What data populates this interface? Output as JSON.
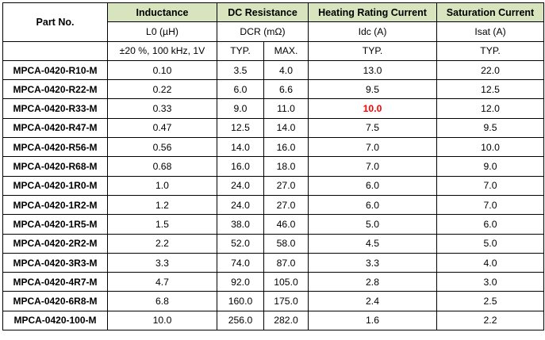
{
  "table": {
    "headers": {
      "part_no": "Part No.",
      "inductance": "Inductance",
      "dc_resistance": "DC Resistance",
      "heating_current": "Heating Rating Current",
      "saturation_current": "Saturation Current"
    },
    "units": {
      "inductance": "L0 (µH)",
      "dcr": "DCR (mΩ)",
      "idc": "Idc (A)",
      "isat": "Isat (A)"
    },
    "conditions": {
      "inductance": "±20 %, 100 kHz, 1V",
      "dcr_typ": "TYP.",
      "dcr_max": "MAX.",
      "idc": "TYP.",
      "isat": "TYP."
    },
    "rows": [
      {
        "part": "MPCA-0420-R10-M",
        "l0": "0.10",
        "dcr_typ": "3.5",
        "dcr_max": "4.0",
        "idc": "13.0",
        "isat": "22.0"
      },
      {
        "part": "MPCA-0420-R22-M",
        "l0": "0.22",
        "dcr_typ": "6.0",
        "dcr_max": "6.6",
        "idc": "9.5",
        "isat": "12.5"
      },
      {
        "part": "MPCA-0420-R33-M",
        "l0": "0.33",
        "dcr_typ": "9.0",
        "dcr_max": "11.0",
        "idc": "10.0",
        "isat": "12.0",
        "idc_highlight": true
      },
      {
        "part": "MPCA-0420-R47-M",
        "l0": "0.47",
        "dcr_typ": "12.5",
        "dcr_max": "14.0",
        "idc": "7.5",
        "isat": "9.5"
      },
      {
        "part": "MPCA-0420-R56-M",
        "l0": "0.56",
        "dcr_typ": "14.0",
        "dcr_max": "16.0",
        "idc": "7.0",
        "isat": "10.0"
      },
      {
        "part": "MPCA-0420-R68-M",
        "l0": "0.68",
        "dcr_typ": "16.0",
        "dcr_max": "18.0",
        "idc": "7.0",
        "isat": "9.0"
      },
      {
        "part": "MPCA-0420-1R0-M",
        "l0": "1.0",
        "dcr_typ": "24.0",
        "dcr_max": "27.0",
        "idc": "6.0",
        "isat": "7.0"
      },
      {
        "part": "MPCA-0420-1R2-M",
        "l0": "1.2",
        "dcr_typ": "24.0",
        "dcr_max": "27.0",
        "idc": "6.0",
        "isat": "7.0"
      },
      {
        "part": "MPCA-0420-1R5-M",
        "l0": "1.5",
        "dcr_typ": "38.0",
        "dcr_max": "46.0",
        "idc": "5.0",
        "isat": "6.0"
      },
      {
        "part": "MPCA-0420-2R2-M",
        "l0": "2.2",
        "dcr_typ": "52.0",
        "dcr_max": "58.0",
        "idc": "4.5",
        "isat": "5.0"
      },
      {
        "part": "MPCA-0420-3R3-M",
        "l0": "3.3",
        "dcr_typ": "74.0",
        "dcr_max": "87.0",
        "idc": "3.3",
        "isat": "4.0"
      },
      {
        "part": "MPCA-0420-4R7-M",
        "l0": "4.7",
        "dcr_typ": "92.0",
        "dcr_max": "105.0",
        "idc": "2.8",
        "isat": "3.0"
      },
      {
        "part": "MPCA-0420-6R8-M",
        "l0": "6.8",
        "dcr_typ": "160.0",
        "dcr_max": "175.0",
        "idc": "2.4",
        "isat": "2.5"
      },
      {
        "part": "MPCA-0420-100-M",
        "l0": "10.0",
        "dcr_typ": "256.0",
        "dcr_max": "282.0",
        "idc": "1.6",
        "isat": "2.2"
      }
    ],
    "colors": {
      "header_bg": "#d7e4bd",
      "highlight": "#ff0000",
      "border": "#000000"
    }
  }
}
